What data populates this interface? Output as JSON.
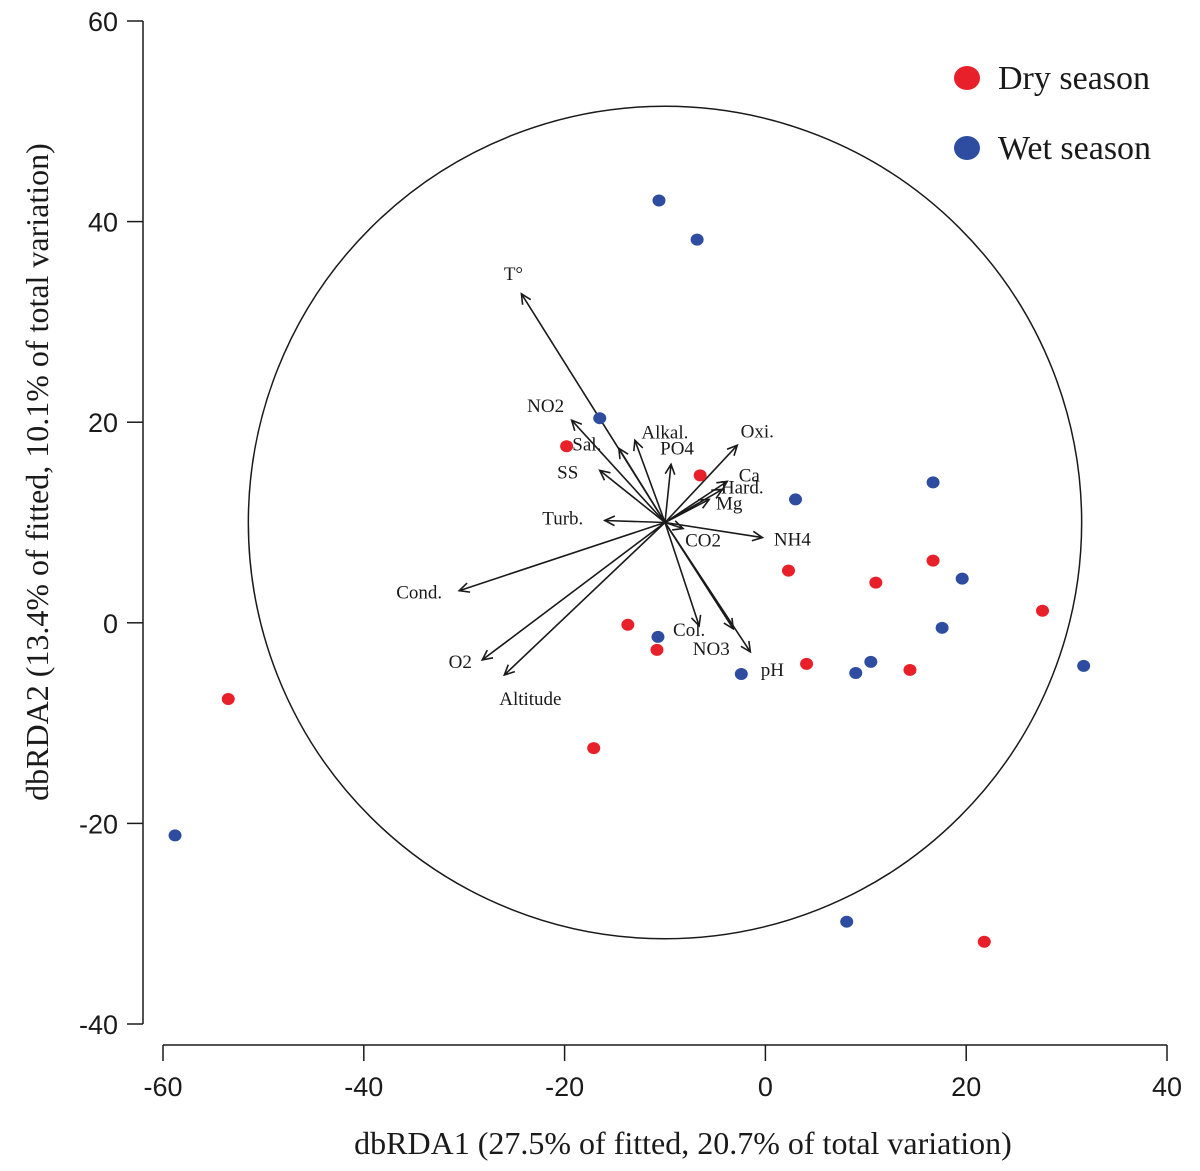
{
  "chart_data": {
    "type": "scatter",
    "xlabel": "dbRDA1 (27.5% of fitted, 20.7% of total variation)",
    "ylabel": "dbRDA2 (13.4% of fitted, 10.1% of total variation)",
    "xlim": [
      -60,
      40
    ],
    "ylim": [
      -40,
      60
    ],
    "xticks": [
      -60,
      -40,
      -20,
      0,
      20,
      40
    ],
    "yticks": [
      -40,
      -20,
      0,
      20,
      40,
      60
    ],
    "circle": {
      "center": [
        -10,
        10
      ],
      "radius": 41.5
    },
    "legend_position": "top-right",
    "series": [
      {
        "name": "Dry season",
        "color": "#e8202a",
        "points": [
          [
            -53.5,
            -7.6
          ],
          [
            -19.8,
            17.6
          ],
          [
            -6.5,
            14.7
          ],
          [
            2.3,
            5.2
          ],
          [
            11,
            4
          ],
          [
            16.7,
            6.2
          ],
          [
            27.6,
            1.2
          ],
          [
            -13.7,
            -0.2
          ],
          [
            -10.8,
            -2.7
          ],
          [
            4.1,
            -4.1
          ],
          [
            14.4,
            -4.7
          ],
          [
            -17.1,
            -12.5
          ],
          [
            21.8,
            -31.8
          ]
        ]
      },
      {
        "name": "Wet season",
        "color": "#2e4da1",
        "points": [
          [
            -10.6,
            42.1
          ],
          [
            -6.8,
            38.2
          ],
          [
            -16.5,
            20.4
          ],
          [
            16.7,
            14
          ],
          [
            3,
            12.3
          ],
          [
            19.6,
            4.4
          ],
          [
            17.6,
            -0.5
          ],
          [
            -10.7,
            -1.4
          ],
          [
            10.5,
            -3.9
          ],
          [
            9,
            -5
          ],
          [
            -2.4,
            -5.1
          ],
          [
            31.7,
            -4.3
          ],
          [
            8.1,
            -29.8
          ],
          [
            -58.8,
            -21.2
          ]
        ]
      }
    ],
    "vectors": [
      {
        "label": "T°",
        "end": [
          -24.3,
          32.8
        ]
      },
      {
        "label": "NO2",
        "end": [
          -19.3,
          20.2
        ]
      },
      {
        "label": "Alkal.",
        "end": [
          -13,
          18.2
        ]
      },
      {
        "label": "Sal.",
        "end": [
          -14.6,
          17.4
        ]
      },
      {
        "label": "SS",
        "end": [
          -16.5,
          15.2
        ]
      },
      {
        "label": "PO4",
        "end": [
          -9.4,
          15.8
        ]
      },
      {
        "label": "Oxi.",
        "end": [
          -2.8,
          17.7
        ]
      },
      {
        "label": "Ca",
        "end": [
          -3.8,
          14.1
        ]
      },
      {
        "label": "Hard.",
        "end": [
          -4.3,
          13.3
        ]
      },
      {
        "label": "Mg",
        "end": [
          -5.6,
          12.3
        ]
      },
      {
        "label": "Turb.",
        "end": [
          -16,
          10.2
        ]
      },
      {
        "label": "CO2",
        "end": [
          -8.2,
          9.4
        ]
      },
      {
        "label": "NH4",
        "end": [
          -0.3,
          8.5
        ]
      },
      {
        "label": "Cond.",
        "end": [
          -30.5,
          3.2
        ]
      },
      {
        "label": "Col.",
        "end": [
          -6.6,
          -0.3
        ]
      },
      {
        "label": "NO3",
        "end": [
          -3.2,
          -0.6
        ]
      },
      {
        "label": "pH",
        "end": [
          -1.5,
          -2.9
        ]
      },
      {
        "label": "O2",
        "end": [
          -28.2,
          -3.7
        ]
      },
      {
        "label": "Altitude",
        "end": [
          -26,
          -5.2
        ]
      }
    ]
  }
}
